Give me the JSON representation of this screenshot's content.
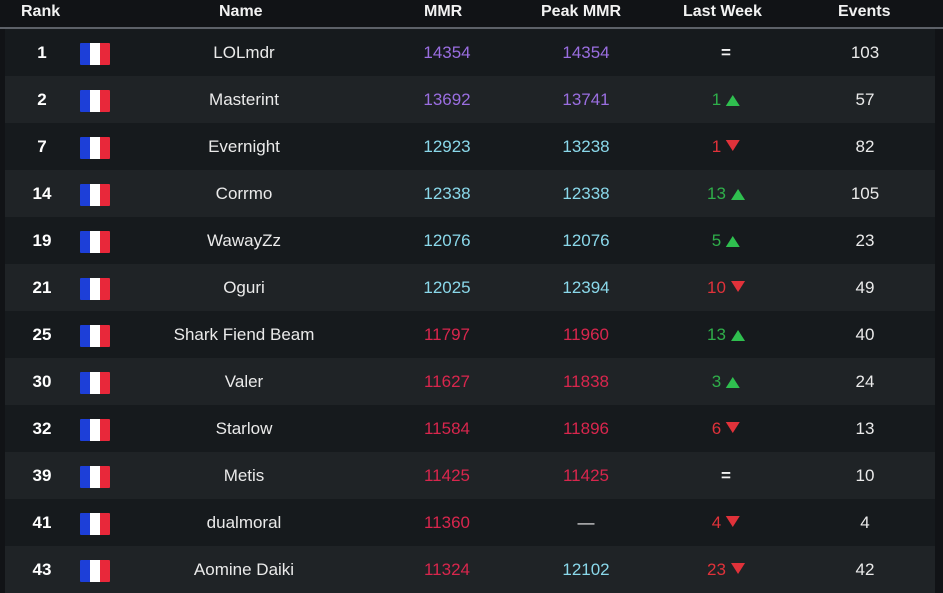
{
  "header": {
    "rank": "Rank",
    "name": "Name",
    "mmr": "MMR",
    "peak": "Peak MMR",
    "last_week": "Last Week",
    "events": "Events"
  },
  "colors": {
    "tier_purple": "#9a6ee0",
    "tier_cyan": "#8ad8ea",
    "tier_red": "#d8264d",
    "up": "#2fae4a",
    "down": "#e0323a",
    "flag_blue": "#1d3fd8",
    "flag_white": "#ffffff",
    "flag_red": "#e8283a"
  },
  "icons": {
    "flag": "france-flag-icon",
    "up": "triangle-up-icon",
    "down": "triangle-down-icon"
  },
  "rows": [
    {
      "rank": "1",
      "name": "LOLmdr",
      "mmr": "14354",
      "mmr_tier": "purple",
      "peak": "14354",
      "peak_tier": "purple",
      "change": "=",
      "trend": "same",
      "events": "103"
    },
    {
      "rank": "2",
      "name": "Masterint",
      "mmr": "13692",
      "mmr_tier": "purple",
      "peak": "13741",
      "peak_tier": "purple",
      "change": "1",
      "trend": "up",
      "events": "57"
    },
    {
      "rank": "7",
      "name": "Evernight",
      "mmr": "12923",
      "mmr_tier": "cyan",
      "peak": "13238",
      "peak_tier": "cyan",
      "change": "1",
      "trend": "down",
      "events": "82"
    },
    {
      "rank": "14",
      "name": "Corrmo",
      "mmr": "12338",
      "mmr_tier": "cyan",
      "peak": "12338",
      "peak_tier": "cyan",
      "change": "13",
      "trend": "up",
      "events": "105"
    },
    {
      "rank": "19",
      "name": "WawayZz",
      "mmr": "12076",
      "mmr_tier": "cyan",
      "peak": "12076",
      "peak_tier": "cyan",
      "change": "5",
      "trend": "up",
      "events": "23"
    },
    {
      "rank": "21",
      "name": "Oguri",
      "mmr": "12025",
      "mmr_tier": "cyan",
      "peak": "12394",
      "peak_tier": "cyan",
      "change": "10",
      "trend": "down",
      "events": "49"
    },
    {
      "rank": "25",
      "name": "Shark Fiend Beam",
      "mmr": "11797",
      "mmr_tier": "red",
      "peak": "11960",
      "peak_tier": "red",
      "change": "13",
      "trend": "up",
      "events": "40"
    },
    {
      "rank": "30",
      "name": "Valer",
      "mmr": "11627",
      "mmr_tier": "red",
      "peak": "11838",
      "peak_tier": "red",
      "change": "3",
      "trend": "up",
      "events": "24"
    },
    {
      "rank": "32",
      "name": "Starlow",
      "mmr": "11584",
      "mmr_tier": "red",
      "peak": "11896",
      "peak_tier": "red",
      "change": "6",
      "trend": "down",
      "events": "13"
    },
    {
      "rank": "39",
      "name": "Metis",
      "mmr": "11425",
      "mmr_tier": "red",
      "peak": "11425",
      "peak_tier": "red",
      "change": "=",
      "trend": "same",
      "events": "10"
    },
    {
      "rank": "41",
      "name": "dualmoral",
      "mmr": "11360",
      "mmr_tier": "red",
      "peak": "—",
      "peak_tier": "plain",
      "change": "4",
      "trend": "down",
      "events": "4"
    },
    {
      "rank": "43",
      "name": "Aomine Daiki",
      "mmr": "11324",
      "mmr_tier": "red",
      "peak": "12102",
      "peak_tier": "cyan",
      "change": "23",
      "trend": "down",
      "events": "42"
    }
  ]
}
